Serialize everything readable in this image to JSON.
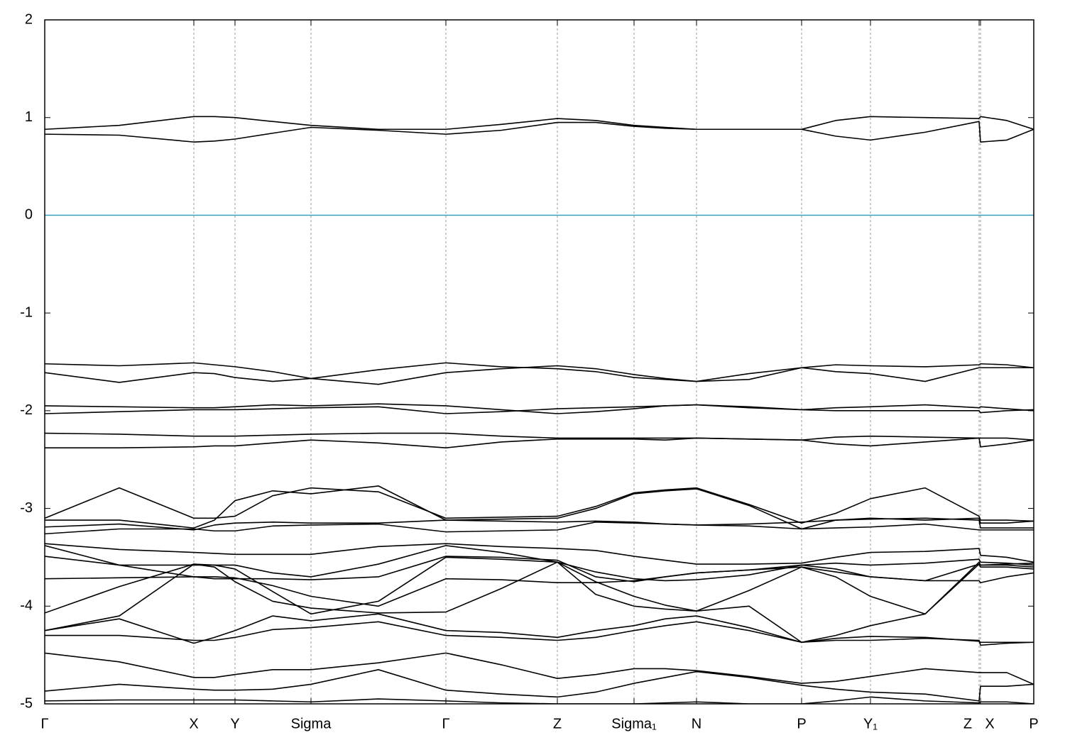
{
  "chart_data": {
    "type": "line",
    "xlim": [
      0,
      1393
    ],
    "ylim": [
      -5,
      2
    ],
    "yticks": [
      -5,
      -4,
      -3,
      -2,
      -1,
      0,
      1,
      2
    ],
    "xticks": [
      {
        "value": 0,
        "label": "Γ"
      },
      {
        "value": 210,
        "label": "X"
      },
      {
        "value": 268,
        "label": "Y"
      },
      {
        "value": 375,
        "label": "Sigma"
      },
      {
        "value": 565,
        "label": "Γ"
      },
      {
        "value": 722,
        "label": "Z"
      },
      {
        "value": 830,
        "label": "Sigma₁"
      },
      {
        "value": 918,
        "label": "N"
      },
      {
        "value": 1066,
        "label": "P"
      },
      {
        "value": 1163,
        "label": "Y₁"
      },
      {
        "value": 1316,
        "label": "Z"
      },
      {
        "value": 1318,
        "label": "X"
      },
      {
        "value": 1393,
        "label": "P"
      }
    ],
    "grid": true,
    "hline": 0,
    "hline_color": "#3ea0c0",
    "x": [
      0,
      105,
      210,
      239,
      268,
      321,
      375,
      470,
      565,
      643,
      722,
      776,
      830,
      874,
      918,
      992,
      1066,
      1114,
      1163,
      1240,
      1316,
      1318,
      1355,
      1393
    ],
    "series": [
      {
        "color": "#000000",
        "values": [
          0.88,
          0.92,
          1.01,
          1.01,
          1.0,
          0.96,
          0.92,
          0.88,
          0.88,
          0.93,
          0.99,
          0.97,
          0.92,
          0.9,
          0.88,
          0.88,
          0.88,
          0.97,
          1.01,
          1.0,
          0.99,
          1.01,
          0.97,
          0.88
        ]
      },
      {
        "color": "#000000",
        "values": [
          0.83,
          0.82,
          0.75,
          0.76,
          0.78,
          0.84,
          0.9,
          0.87,
          0.83,
          0.87,
          0.95,
          0.95,
          0.91,
          0.89,
          0.88,
          0.88,
          0.88,
          0.81,
          0.77,
          0.85,
          0.96,
          0.75,
          0.77,
          0.88
        ]
      },
      {
        "color": "#000000",
        "values": [
          -1.52,
          -1.54,
          -1.51,
          -1.53,
          -1.55,
          -1.6,
          -1.67,
          -1.58,
          -1.51,
          -1.55,
          -1.57,
          -1.6,
          -1.66,
          -1.68,
          -1.7,
          -1.62,
          -1.56,
          -1.53,
          -1.54,
          -1.55,
          -1.53,
          -1.52,
          -1.53,
          -1.56
        ]
      },
      {
        "color": "#000000",
        "values": [
          -1.61,
          -1.71,
          -1.61,
          -1.62,
          -1.66,
          -1.7,
          -1.67,
          -1.73,
          -1.61,
          -1.57,
          -1.54,
          -1.57,
          -1.63,
          -1.67,
          -1.7,
          -1.68,
          -1.56,
          -1.6,
          -1.62,
          -1.7,
          -1.56,
          -1.56,
          -1.56,
          -1.56
        ]
      },
      {
        "color": "#000000",
        "values": [
          -1.95,
          -1.96,
          -1.97,
          -1.97,
          -1.96,
          -1.94,
          -1.95,
          -1.93,
          -1.95,
          -1.99,
          -2.03,
          -2.01,
          -1.98,
          -1.95,
          -1.94,
          -1.96,
          -1.99,
          -1.97,
          -1.96,
          -1.94,
          -1.97,
          -1.96,
          -1.98,
          -2.0
        ]
      },
      {
        "color": "#000000",
        "values": [
          -2.03,
          -2.01,
          -1.99,
          -1.99,
          -1.99,
          -1.98,
          -1.97,
          -1.96,
          -2.03,
          -2.01,
          -1.98,
          -1.97,
          -1.96,
          -1.95,
          -1.94,
          -1.97,
          -1.99,
          -2.0,
          -2.0,
          -2.0,
          -2.0,
          -2.02,
          -2.0,
          -1.99
        ]
      },
      {
        "color": "#000000",
        "values": [
          -2.23,
          -2.24,
          -2.26,
          -2.26,
          -2.26,
          -2.25,
          -2.24,
          -2.23,
          -2.23,
          -2.26,
          -2.28,
          -2.28,
          -2.28,
          -2.28,
          -2.28,
          -2.29,
          -2.3,
          -2.27,
          -2.26,
          -2.27,
          -2.28,
          -2.28,
          -2.28,
          -2.3
        ]
      },
      {
        "color": "#000000",
        "values": [
          -2.38,
          -2.38,
          -2.37,
          -2.36,
          -2.36,
          -2.33,
          -2.3,
          -2.33,
          -2.38,
          -2.32,
          -2.29,
          -2.29,
          -2.29,
          -2.3,
          -2.28,
          -2.29,
          -2.3,
          -2.34,
          -2.36,
          -2.32,
          -2.28,
          -2.37,
          -2.34,
          -2.3
        ]
      },
      {
        "color": "#000000",
        "values": [
          -3.1,
          -2.79,
          -3.1,
          -3.1,
          -3.08,
          -2.87,
          -2.79,
          -2.83,
          -3.1,
          -3.09,
          -3.08,
          -2.98,
          -2.84,
          -2.81,
          -2.79,
          -2.96,
          -3.15,
          -3.05,
          -2.9,
          -2.79,
          -3.08,
          -3.12,
          -3.12,
          -3.13
        ]
      },
      {
        "color": "#000000",
        "values": [
          -3.12,
          -3.12,
          -3.2,
          -3.12,
          -2.92,
          -2.82,
          -2.85,
          -2.77,
          -3.12,
          -3.11,
          -3.1,
          -3.0,
          -2.85,
          -2.82,
          -2.8,
          -2.97,
          -3.21,
          -3.12,
          -3.1,
          -3.12,
          -3.1,
          -3.15,
          -3.15,
          -3.13
        ]
      },
      {
        "color": "#000000",
        "values": [
          -3.19,
          -3.16,
          -3.22,
          -3.17,
          -3.15,
          -3.14,
          -3.15,
          -3.15,
          -3.12,
          -3.13,
          -3.14,
          -3.13,
          -3.14,
          -3.16,
          -3.17,
          -3.16,
          -3.14,
          -3.12,
          -3.11,
          -3.1,
          -3.12,
          -3.2,
          -3.2,
          -3.2
        ]
      },
      {
        "color": "#000000",
        "values": [
          -3.26,
          -3.21,
          -3.21,
          -3.23,
          -3.23,
          -3.18,
          -3.17,
          -3.16,
          -3.24,
          -3.23,
          -3.22,
          -3.14,
          -3.15,
          -3.16,
          -3.17,
          -3.18,
          -3.21,
          -3.2,
          -3.19,
          -3.16,
          -3.22,
          -3.22,
          -3.22,
          -3.22
        ]
      },
      {
        "color": "#000000",
        "values": [
          -3.36,
          -3.42,
          -3.45,
          -3.46,
          -3.47,
          -3.47,
          -3.47,
          -3.39,
          -3.36,
          -3.39,
          -3.41,
          -3.43,
          -3.49,
          -3.53,
          -3.57,
          -3.57,
          -3.56,
          -3.5,
          -3.45,
          -3.44,
          -3.41,
          -3.48,
          -3.5,
          -3.55
        ]
      },
      {
        "color": "#000000",
        "values": [
          -3.38,
          -3.58,
          -3.58,
          -3.58,
          -3.58,
          -3.66,
          -3.7,
          -3.57,
          -3.38,
          -3.45,
          -3.55,
          -3.65,
          -3.72,
          -3.74,
          -3.73,
          -3.68,
          -3.58,
          -3.56,
          -3.58,
          -3.56,
          -3.52,
          -3.55,
          -3.56,
          -3.58
        ]
      },
      {
        "color": "#000000",
        "values": [
          -3.49,
          -3.58,
          -3.7,
          -3.72,
          -3.72,
          -3.72,
          -3.73,
          -3.7,
          -3.49,
          -3.5,
          -3.53,
          -3.7,
          -3.75,
          -3.7,
          -3.66,
          -3.63,
          -3.58,
          -3.62,
          -3.7,
          -3.74,
          -3.57,
          -3.6,
          -3.6,
          -3.62
        ]
      },
      {
        "color": "#000000",
        "values": [
          -3.72,
          -3.71,
          -3.7,
          -3.7,
          -3.71,
          -3.79,
          -3.9,
          -4.0,
          -3.72,
          -3.73,
          -3.76,
          -3.76,
          -3.74,
          -3.7,
          -3.66,
          -3.63,
          -3.6,
          -3.65,
          -3.7,
          -3.74,
          -3.74,
          -3.76,
          -3.7,
          -3.66
        ]
      },
      {
        "color": "#000000",
        "values": [
          -4.07,
          -3.8,
          -3.57,
          -3.58,
          -3.62,
          -3.85,
          -4.08,
          -3.95,
          -3.5,
          -3.52,
          -3.55,
          -3.88,
          -4.0,
          -4.03,
          -4.05,
          -3.84,
          -3.6,
          -3.7,
          -3.9,
          -4.08,
          -3.55,
          -3.58,
          -3.58,
          -3.6
        ]
      },
      {
        "color": "#000000",
        "values": [
          -4.25,
          -4.1,
          -3.57,
          -3.6,
          -3.75,
          -3.95,
          -4.02,
          -4.07,
          -4.06,
          -3.82,
          -3.55,
          -3.75,
          -3.9,
          -3.99,
          -4.05,
          -4.0,
          -4.37,
          -4.3,
          -4.2,
          -4.08,
          -3.57,
          -3.58,
          -3.57,
          -3.56
        ]
      },
      {
        "color": "#000000",
        "values": [
          -4.25,
          -4.13,
          -4.38,
          -4.32,
          -4.25,
          -4.1,
          -4.15,
          -4.08,
          -4.25,
          -4.27,
          -4.32,
          -4.25,
          -4.2,
          -4.13,
          -4.1,
          -4.22,
          -4.37,
          -4.33,
          -4.31,
          -4.32,
          -4.36,
          -4.37,
          -4.37,
          -4.37
        ]
      },
      {
        "color": "#000000",
        "values": [
          -4.3,
          -4.3,
          -4.35,
          -4.35,
          -4.32,
          -4.24,
          -4.22,
          -4.16,
          -4.3,
          -4.32,
          -4.35,
          -4.32,
          -4.25,
          -4.2,
          -4.16,
          -4.25,
          -4.37,
          -4.35,
          -4.35,
          -4.33,
          -4.35,
          -4.4,
          -4.38,
          -4.37
        ]
      },
      {
        "color": "#000000",
        "values": [
          -4.48,
          -4.57,
          -4.73,
          -4.73,
          -4.7,
          -4.65,
          -4.65,
          -4.58,
          -4.48,
          -4.6,
          -4.74,
          -4.7,
          -4.64,
          -4.64,
          -4.66,
          -4.72,
          -4.79,
          -4.77,
          -4.72,
          -4.64,
          -4.68,
          -4.68,
          -4.68,
          -4.8
        ]
      },
      {
        "color": "#000000",
        "values": [
          -4.87,
          -4.8,
          -4.85,
          -4.86,
          -4.86,
          -4.85,
          -4.8,
          -4.65,
          -4.86,
          -4.9,
          -4.93,
          -4.88,
          -4.79,
          -4.73,
          -4.67,
          -4.73,
          -4.81,
          -4.85,
          -4.88,
          -4.9,
          -4.97,
          -4.82,
          -4.82,
          -4.8
        ]
      },
      {
        "color": "#000000",
        "values": [
          -4.97,
          -4.96,
          -4.96,
          -4.96,
          -4.96,
          -4.97,
          -4.98,
          -4.95,
          -4.97,
          -4.99,
          -5.0,
          -5.0,
          -5.0,
          -4.99,
          -4.98,
          -5.0,
          -5.0,
          -4.97,
          -4.93,
          -4.97,
          -4.99,
          -4.98,
          -4.98,
          -5.0
        ]
      }
    ]
  }
}
